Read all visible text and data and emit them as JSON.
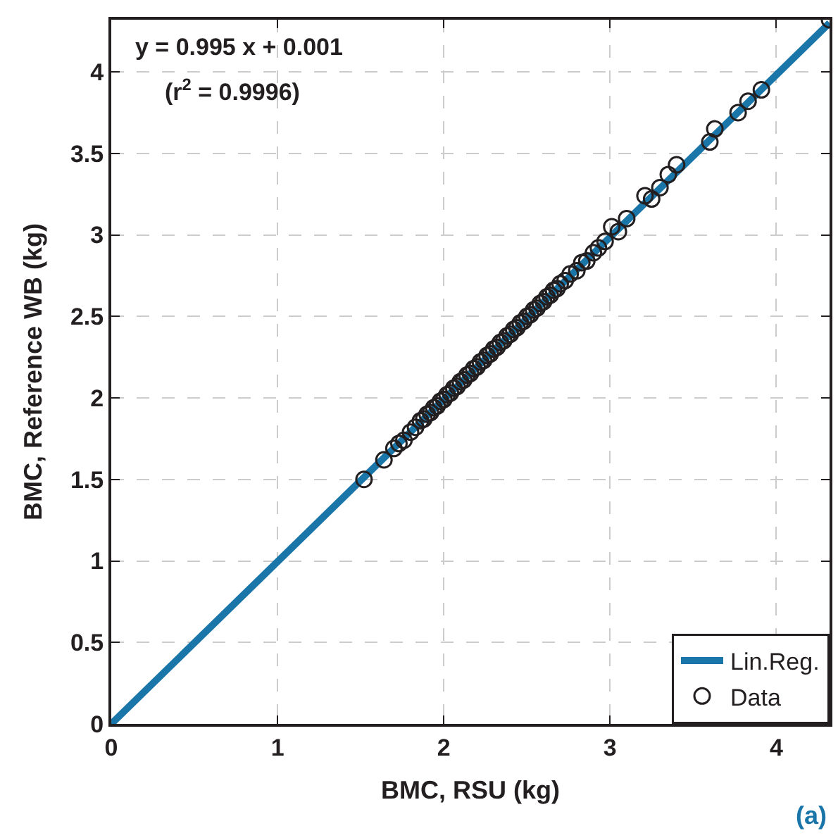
{
  "chart_data": {
    "type": "scatter",
    "xlabel": "BMC, RSU (kg)",
    "ylabel": "BMC, Reference WB (kg)",
    "xlim": [
      0,
      4.32
    ],
    "ylim": [
      0,
      4.32
    ],
    "xticks": [
      0,
      1,
      2,
      3,
      4
    ],
    "yticks": [
      0,
      0.5,
      1,
      1.5,
      2,
      2.5,
      3,
      3.5,
      4
    ],
    "grid": true,
    "legend": "bottom right",
    "annotations": [
      "y = 0.995 x + 0.001",
      "(r$^{2}$ = 0.9996)",
      "(a)"
    ],
    "series": [
      {
        "name": "Lin.Reg.",
        "type": "line",
        "color": "#1a75a8",
        "marker": "none",
        "line_style": "solid",
        "x": [
          0,
          4.32
        ],
        "values": [
          0.0,
          4.3
        ]
      },
      {
        "name": "Data",
        "color": "#231f20",
        "marker": "circle",
        "x": [
          1.52,
          1.64,
          1.7,
          1.73,
          1.76,
          1.8,
          1.83,
          1.86,
          1.88,
          1.9,
          1.92,
          1.94,
          1.96,
          1.98,
          2.0,
          2.02,
          2.04,
          2.06,
          2.08,
          2.1,
          2.12,
          2.14,
          2.16,
          2.18,
          2.2,
          2.22,
          2.24,
          2.26,
          2.28,
          2.3,
          2.32,
          2.34,
          2.36,
          2.38,
          2.4,
          2.42,
          2.44,
          2.46,
          2.48,
          2.5,
          2.52,
          2.54,
          2.56,
          2.58,
          2.6,
          2.62,
          2.64,
          2.66,
          2.68,
          2.7,
          2.73,
          2.76,
          2.8,
          2.83,
          2.86,
          2.9,
          2.93,
          2.97,
          3.01,
          3.05,
          3.1,
          3.21,
          3.25,
          3.3,
          3.35,
          3.4,
          3.6,
          3.63,
          3.77,
          3.83,
          3.91,
          4.32
        ],
        "values": [
          1.5,
          1.62,
          1.69,
          1.72,
          1.74,
          1.79,
          1.82,
          1.86,
          1.87,
          1.9,
          1.91,
          1.94,
          1.95,
          1.98,
          1.99,
          2.02,
          2.03,
          2.06,
          2.07,
          2.1,
          2.11,
          2.14,
          2.15,
          2.18,
          2.19,
          2.22,
          2.23,
          2.26,
          2.27,
          2.3,
          2.31,
          2.34,
          2.35,
          2.38,
          2.39,
          2.42,
          2.43,
          2.46,
          2.47,
          2.5,
          2.51,
          2.54,
          2.55,
          2.58,
          2.59,
          2.62,
          2.63,
          2.66,
          2.67,
          2.7,
          2.72,
          2.76,
          2.78,
          2.83,
          2.84,
          2.89,
          2.92,
          2.96,
          3.05,
          3.02,
          3.1,
          3.24,
          3.22,
          3.29,
          3.37,
          3.43,
          3.57,
          3.65,
          3.75,
          3.82,
          3.89,
          4.32
        ]
      }
    ]
  }
}
